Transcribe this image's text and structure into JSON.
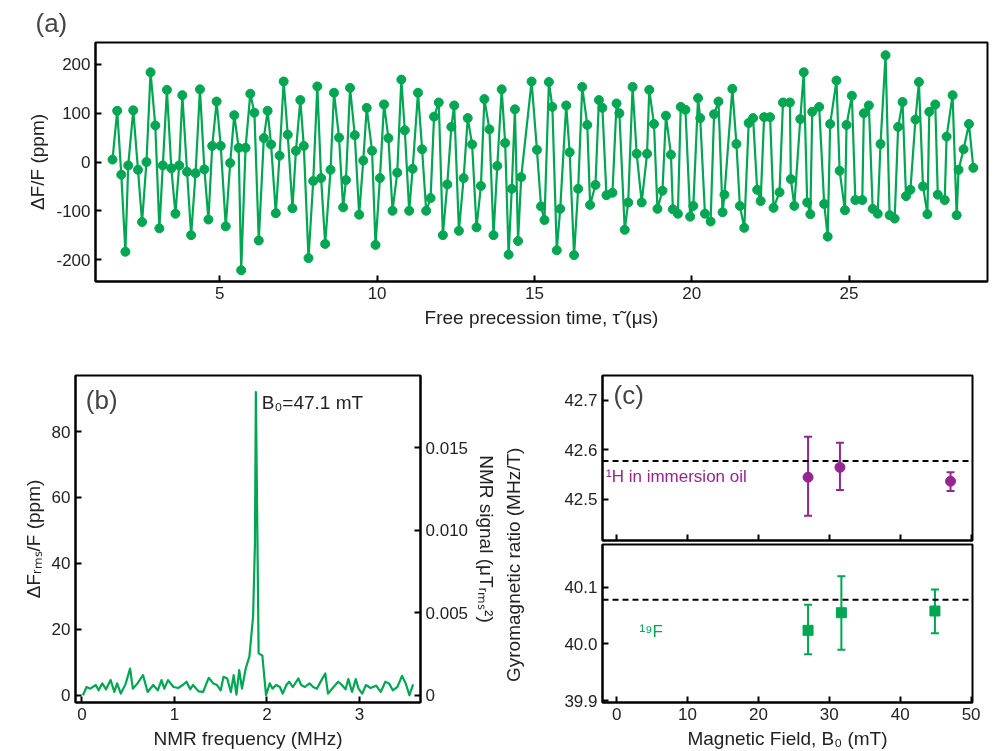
{
  "chart_data": [
    {
      "type": "line",
      "title": "(a)",
      "xlabel": "Free precession time, τ̃ (μs)",
      "ylabel": "ΔF/F (ppm)",
      "color": "#00a651",
      "marker": "circle",
      "line_style": "solid",
      "grid": false,
      "x": [
        1.59,
        1.74,
        1.87,
        2.0,
        2.09,
        2.25,
        2.4,
        2.53,
        2.67,
        2.8,
        2.95,
        3.08,
        3.19,
        3.32,
        3.46,
        3.59,
        3.71,
        3.81,
        3.96,
        4.09,
        4.23,
        4.37,
        4.51,
        4.64,
        4.76,
        4.9,
        5.03,
        5.19,
        5.33,
        5.46,
        5.6,
        5.68,
        5.82,
        5.97,
        6.1,
        6.24,
        6.4,
        6.52,
        6.63,
        6.78,
        6.9,
        7.03,
        7.16,
        7.31,
        7.42,
        7.56,
        7.67,
        7.82,
        7.97,
        8.1,
        8.22,
        8.35,
        8.52,
        8.63,
        8.79,
        8.92,
        9.01,
        9.14,
        9.29,
        9.43,
        9.56,
        9.67,
        9.84,
        9.95,
        10.09,
        10.22,
        10.36,
        10.49,
        10.64,
        10.77,
        10.88,
        11.02,
        11.13,
        11.3,
        11.43,
        11.56,
        11.7,
        11.81,
        11.96,
        12.09,
        12.23,
        12.36,
        12.45,
        12.6,
        12.75,
        12.88,
        13.02,
        13.16,
        13.3,
        13.41,
        13.57,
        13.7,
        13.82,
        13.96,
        14.07,
        14.18,
        14.28,
        14.38,
        14.48,
        14.58,
        14.91,
        15.08,
        15.21,
        15.32,
        15.46,
        15.57,
        15.71,
        15.82,
        16.01,
        16.12,
        16.26,
        16.39,
        16.52,
        16.68,
        16.77,
        16.94,
        17.05,
        17.16,
        17.29,
        17.48,
        17.61,
        17.7,
        17.87,
        17.98,
        18.12,
        18.25,
        18.41,
        18.58,
        18.65,
        18.8,
        18.91,
        19.07,
        19.18,
        19.34,
        19.4,
        19.56,
        19.65,
        19.8,
        19.95,
        20.05,
        20.2,
        20.27,
        20.42,
        20.6,
        20.71,
        20.85,
        20.98,
        21.04,
        21.29,
        21.42,
        21.53,
        21.67,
        21.81,
        21.95,
        22.08,
        22.19,
        22.3,
        22.49,
        22.6,
        22.79,
        22.9,
        23.12,
        23.15,
        23.26,
        23.45,
        23.56,
        23.67,
        23.77,
        23.83,
        24.05,
        24.21,
        24.32,
        24.4,
        24.6,
        24.7,
        24.87,
        24.92,
        25.09,
        25.2,
        25.42,
        25.47,
        25.63,
        25.75,
        25.91,
        26.0,
        26.16,
        26.29,
        26.45,
        26.56,
        26.7,
        26.81,
        26.95,
        27.11,
        27.22,
        27.35,
        27.49,
        27.55,
        27.74,
        27.82,
        28.04,
        28.1,
        28.29,
        28.42,
        28.48,
        28.64,
        28.81,
        28.95
      ],
      "values": [
        5,
        105,
        -26,
        -184,
        -7,
        106,
        -16,
        -123,
        0,
        184,
        75,
        -136,
        -7,
        148,
        -13,
        -106,
        -7,
        137,
        -20,
        -150,
        -23,
        149,
        -15,
        -118,
        33,
        124,
        33,
        -132,
        -2,
        96,
        29,
        -222,
        29,
        140,
        101,
        -161,
        49,
        105,
        36,
        -105,
        13,
        165,
        56,
        -95,
        23,
        127,
        33,
        -197,
        -39,
        155,
        -33,
        -168,
        -16,
        142,
        50,
        -93,
        -37,
        152,
        55,
        -108,
        3,
        111,
        23,
        -170,
        -33,
        118,
        49,
        -100,
        -22,
        169,
        65,
        -100,
        -14,
        142,
        26,
        -100,
        -74,
        93,
        122,
        -150,
        -46,
        72,
        116,
        -141,
        -33,
        90,
        36,
        -134,
        -49,
        129,
        67,
        -150,
        -8,
        149,
        39,
        -190,
        -55,
        108,
        -162,
        -31,
        165,
        25,
        -91,
        -119,
        164,
        113,
        -181,
        -96,
        116,
        20,
        -191,
        -55,
        154,
        76,
        -88,
        -47,
        127,
        111,
        -68,
        -63,
        120,
        100,
        -139,
        -83,
        154,
        17,
        -83,
        17,
        148,
        78,
        -96,
        -59,
        95,
        15,
        -97,
        -106,
        113,
        107,
        -112,
        -90,
        131,
        90,
        -106,
        -122,
        98,
        124,
        -103,
        -67,
        150,
        37,
        -90,
        -135,
        80,
        90,
        -57,
        -80,
        92,
        92,
        -94,
        -62,
        122,
        122,
        -35,
        -90,
        88,
        184,
        -83,
        -107,
        103,
        113,
        -86,
        -153,
        78,
        167,
        -18,
        -99,
        76,
        136,
        -78,
        -78,
        100,
        116,
        -96,
        -106,
        37,
        219,
        -109,
        -116,
        72,
        123,
        -70,
        -57,
        87,
        164,
        -50,
        -107,
        103,
        118,
        -67,
        -78,
        52,
        137,
        -109,
        -16,
        26,
        78,
        -12
      ],
      "xlim": [
        1.05,
        29.4
      ],
      "ylim": [
        -245,
        245
      ],
      "xticks": [
        5,
        10,
        15,
        20,
        25
      ],
      "yticks": [
        -200,
        -100,
        0,
        100,
        200
      ]
    },
    {
      "type": "line",
      "title": "(b)",
      "xlabel": "NMR frequency (MHz)",
      "ylabel": "ΔFᵣₘₛ/F (ppm)",
      "y2label": "NMR signal (μTᵣₘₛ²)",
      "color": "#00a651",
      "marker": "none",
      "line_style": "solid",
      "grid": false,
      "x": [
        0.01,
        0.05,
        0.09,
        0.15,
        0.18,
        0.22,
        0.26,
        0.31,
        0.35,
        0.38,
        0.42,
        0.47,
        0.52,
        0.55,
        0.6,
        0.66,
        0.71,
        0.77,
        0.82,
        0.86,
        0.89,
        0.93,
        0.99,
        1.04,
        1.09,
        1.13,
        1.17,
        1.2,
        1.26,
        1.31,
        1.37,
        1.42,
        1.46,
        1.5,
        1.53,
        1.57,
        1.61,
        1.64,
        1.67,
        1.7,
        1.73,
        1.77,
        1.81,
        1.85,
        1.87,
        1.88,
        1.91,
        1.95,
        1.99,
        2.03,
        2.06,
        2.1,
        2.14,
        2.17,
        2.21,
        2.24,
        2.28,
        2.34,
        2.37,
        2.41,
        2.46,
        2.5,
        2.54,
        2.57,
        2.63,
        2.66,
        2.72,
        2.77,
        2.81,
        2.85,
        2.88,
        2.92,
        2.96,
        2.99,
        3.03,
        3.07,
        3.12,
        3.18,
        3.23,
        3.28,
        3.32,
        3.36,
        3.41,
        3.46,
        3.5,
        3.54,
        3.58
      ],
      "values": [
        0,
        2.5,
        2.0,
        3.1,
        1.5,
        3.6,
        1.8,
        4.6,
        1.0,
        3.6,
        0.5,
        3.3,
        8.1,
        2.0,
        3.6,
        6.1,
        1.0,
        3.1,
        1.5,
        4.6,
        2.0,
        4.6,
        2.5,
        2.2,
        3.1,
        4.1,
        1.8,
        3.1,
        1.2,
        1.0,
        5.3,
        3.6,
        3.1,
        1.5,
        5.6,
        5.1,
        1.0,
        6.1,
        0.2,
        7.6,
        2.0,
        8.1,
        11.7,
        23.9,
        45.8,
        92,
        12.7,
        12.0,
        0,
        3.6,
        2.0,
        3.1,
        2.5,
        0.5,
        3.1,
        4.1,
        2.5,
        5.1,
        3.1,
        2.5,
        3.6,
        2.5,
        2.0,
        3.6,
        6.6,
        0.5,
        2.5,
        4.1,
        3.1,
        1.8,
        4.9,
        1.0,
        4.9,
        2.0,
        0.5,
        3.1,
        2.2,
        2.9,
        1.0,
        4.1,
        3.6,
        1.5,
        2.5,
        5.9,
        3.6,
        0,
        3.3
      ],
      "xlim": [
        -0.07,
        3.66
      ],
      "ylim": [
        -2.2,
        97
      ],
      "xticks": [
        0,
        1,
        2,
        3
      ],
      "yticks": [
        0,
        20,
        40,
        60,
        80
      ],
      "y2lim": [
        -0.00045,
        0.0194
      ],
      "y2ticks": [
        0,
        {
          "value": 0.005,
          "label": "0.005"
        },
        {
          "value": 0.01,
          "label": "0.010"
        },
        {
          "value": 0.015,
          "label": "0.015"
        }
      ],
      "annotations": [
        "B₀=47.1 mT"
      ]
    },
    {
      "type": "scatter",
      "title": "(c)",
      "ylabel": "Gyromagnetic ratio (MHz/T)",
      "grid": false,
      "tick_labels": "y",
      "series": [
        {
          "color": "#93278f",
          "marker": "circle",
          "x": [
            27.0,
            31.5,
            47.1
          ],
          "values": [
            42.544,
            42.564,
            42.536
          ],
          "errors": [
            [
              42.466,
              42.626
            ],
            [
              42.518,
              42.614
            ],
            [
              42.516,
              42.554
            ]
          ]
        }
      ],
      "xlim": [
        -2,
        50.2
      ],
      "ylim": [
        42.416,
        42.75
      ],
      "xticks": [
        0,
        10,
        20,
        30,
        40,
        50
      ],
      "yticks": [
        42.5,
        42.6,
        42.7
      ],
      "ref_lines": [
        {
          "axis": "y",
          "value": 42.577,
          "color": "#000000",
          "line_style": "dashed"
        }
      ],
      "annotations": [
        {
          "text": "¹H in immersion oil",
          "x": -1.5,
          "y": 42.577
        }
      ]
    },
    {
      "type": "scatter",
      "xlabel": "Magnetic Field, B₀ (mT)",
      "grid": false,
      "series": [
        {
          "color": "#00a651",
          "marker": "square",
          "x": [
            27.0,
            31.7,
            44.9
          ],
          "values": [
            40.024,
            40.055,
            40.058
          ],
          "errors": [
            [
              39.982,
              40.069
            ],
            [
              39.99,
              40.119
            ],
            [
              40.019,
              40.096
            ]
          ]
        }
      ],
      "xlim": [
        -2,
        50.2
      ],
      "ylim": [
        39.897,
        40.175
      ],
      "xticks": [
        0,
        10,
        20,
        30,
        40,
        50
      ],
      "yticks": [
        39.9,
        {
          "value": 40.0,
          "label": "40.0"
        },
        40.1
      ],
      "ref_lines": [
        {
          "axis": "y",
          "value": 40.078,
          "color": "#000000",
          "line_style": "dashed"
        }
      ],
      "annotations": [
        "¹⁹F"
      ]
    }
  ]
}
